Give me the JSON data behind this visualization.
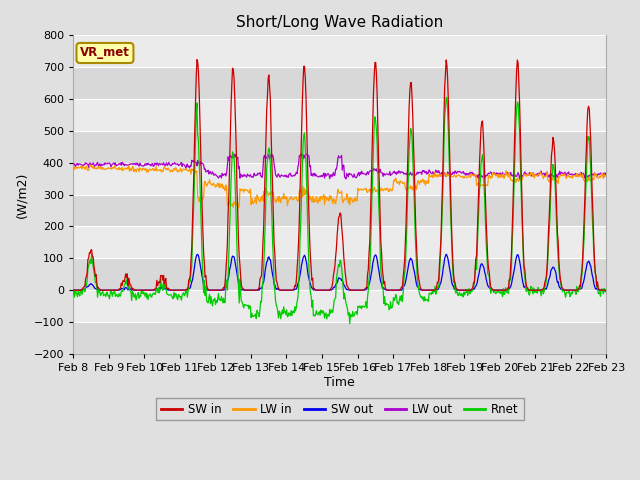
{
  "title": "Short/Long Wave Radiation",
  "xlabel": "Time",
  "ylabel": "(W/m2)",
  "ylim": [
    -200,
    800
  ],
  "yticks": [
    -200,
    -100,
    0,
    100,
    200,
    300,
    400,
    500,
    600,
    700,
    800
  ],
  "x_labels": [
    "Feb 8",
    "Feb 9",
    "Feb 10",
    "Feb 11",
    "Feb 12",
    "Feb 13",
    "Feb 14",
    "Feb 15",
    "Feb 16",
    "Feb 17",
    "Feb 18",
    "Feb 19",
    "Feb 20",
    "Feb 21",
    "Feb 22",
    "Feb 23"
  ],
  "site_label": "VR_met",
  "colors": {
    "SW_in": "#cc0000",
    "LW_in": "#ff9900",
    "SW_out": "#0000ee",
    "LW_out": "#aa00cc",
    "Rnet": "#00cc00"
  },
  "legend_labels": [
    "SW in",
    "LW in",
    "SW out",
    "LW out",
    "Rnet"
  ],
  "bg_light": "#ebebeb",
  "bg_dark": "#d8d8d8",
  "fig_bg": "#e0e0e0"
}
